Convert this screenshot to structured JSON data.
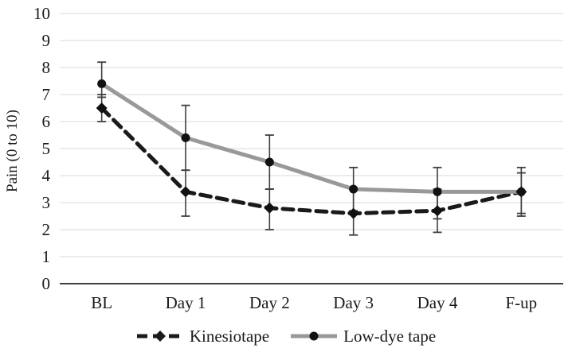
{
  "chart_data": {
    "type": "line",
    "title": "",
    "xlabel": "",
    "ylabel": "Pain (0 to 10)",
    "categories": [
      "BL",
      "Day 1",
      "Day 2",
      "Day 3",
      "Day 4",
      "F-up"
    ],
    "yticks": [
      0,
      1,
      2,
      3,
      4,
      5,
      6,
      7,
      8,
      9,
      10
    ],
    "ylim": [
      0,
      10
    ],
    "grid": true,
    "gridline_color": "#d9d9d9",
    "axis_color": "#000000",
    "error_bar_color": "#3f3f3f",
    "legend_position": "bottom",
    "series": [
      {
        "name": "Kinesiotape",
        "values": [
          6.5,
          3.4,
          2.8,
          2.6,
          2.7,
          3.4
        ],
        "error_low": [
          6.0,
          2.5,
          2.0,
          1.8,
          1.9,
          2.5
        ],
        "error_high": [
          7.0,
          4.2,
          3.5,
          3.5,
          3.5,
          4.3
        ],
        "color": "#1a1a1a",
        "line_style": "dashed",
        "marker": "diamond"
      },
      {
        "name": "Low-dye tape",
        "values": [
          7.4,
          5.4,
          4.5,
          3.5,
          3.4,
          3.4
        ],
        "error_low": [
          6.9,
          4.2,
          3.5,
          2.7,
          2.4,
          2.6
        ],
        "error_high": [
          8.2,
          6.6,
          5.5,
          4.3,
          4.3,
          4.1
        ],
        "color": "#999999",
        "line_style": "solid",
        "marker": "circle"
      }
    ]
  }
}
